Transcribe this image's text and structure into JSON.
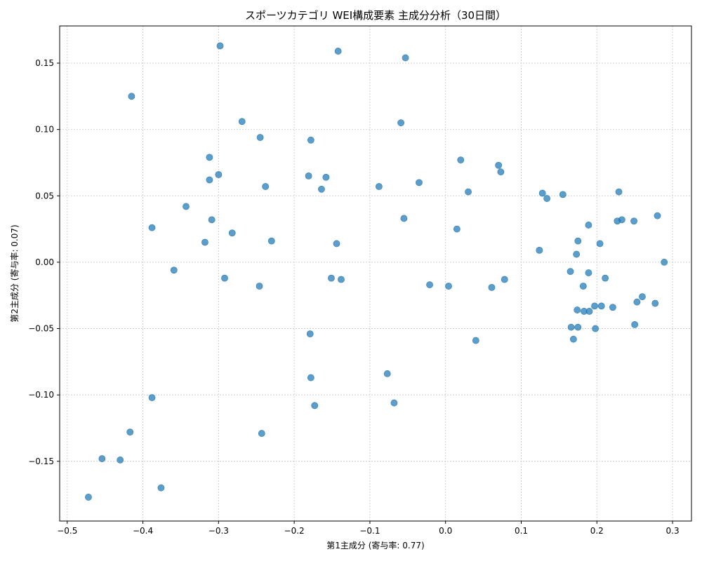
{
  "chart_data": {
    "type": "scatter",
    "title": "スポーツカテゴリ WEI構成要素 主成分分析（30日間）",
    "xlabel": "第1主成分 (寄与率: 0.77)",
    "ylabel": "第2主成分 (寄与率: 0.07)",
    "xlim": [
      -0.51,
      0.325
    ],
    "ylim": [
      -0.195,
      0.178
    ],
    "xticks": [
      -0.5,
      -0.4,
      -0.3,
      -0.2,
      -0.1,
      0.0,
      0.1,
      0.2,
      0.3
    ],
    "xtick_labels": [
      "−0.5",
      "−0.4",
      "−0.3",
      "−0.2",
      "−0.1",
      "0.0",
      "0.1",
      "0.2",
      "0.3"
    ],
    "yticks": [
      -0.15,
      -0.1,
      -0.05,
      0.0,
      0.05,
      0.1,
      0.15
    ],
    "ytick_labels": [
      "−0.15",
      "−0.10",
      "−0.05",
      "0.00",
      "0.05",
      "0.10",
      "0.15"
    ],
    "grid": true,
    "color": "#1f77b4",
    "points": [
      [
        -0.298,
        0.163
      ],
      [
        -0.142,
        0.159
      ],
      [
        -0.053,
        0.154
      ],
      [
        -0.415,
        0.125
      ],
      [
        -0.269,
        0.106
      ],
      [
        -0.059,
        0.105
      ],
      [
        -0.245,
        0.094
      ],
      [
        -0.178,
        0.092
      ],
      [
        -0.312,
        0.079
      ],
      [
        0.02,
        0.077
      ],
      [
        0.07,
        0.073
      ],
      [
        0.073,
        0.068
      ],
      [
        -0.3,
        0.066
      ],
      [
        -0.181,
        0.065
      ],
      [
        -0.158,
        0.064
      ],
      [
        -0.312,
        0.062
      ],
      [
        -0.035,
        0.06
      ],
      [
        -0.238,
        0.057
      ],
      [
        -0.088,
        0.057
      ],
      [
        -0.164,
        0.055
      ],
      [
        0.03,
        0.053
      ],
      [
        0.229,
        0.053
      ],
      [
        0.128,
        0.052
      ],
      [
        0.155,
        0.051
      ],
      [
        0.134,
        0.048
      ],
      [
        -0.343,
        0.042
      ],
      [
        0.28,
        0.035
      ],
      [
        -0.055,
        0.033
      ],
      [
        -0.309,
        0.032
      ],
      [
        0.233,
        0.032
      ],
      [
        0.249,
        0.031
      ],
      [
        0.227,
        0.031
      ],
      [
        0.189,
        0.028
      ],
      [
        -0.388,
        0.026
      ],
      [
        0.015,
        0.025
      ],
      [
        -0.282,
        0.022
      ],
      [
        0.175,
        0.016
      ],
      [
        -0.23,
        0.016
      ],
      [
        -0.318,
        0.015
      ],
      [
        0.204,
        0.014
      ],
      [
        -0.144,
        0.014
      ],
      [
        0.124,
        0.009
      ],
      [
        0.173,
        0.006
      ],
      [
        0.289,
        0.0
      ],
      [
        -0.359,
        -0.006
      ],
      [
        0.165,
        -0.007
      ],
      [
        0.189,
        -0.008
      ],
      [
        -0.151,
        -0.012
      ],
      [
        -0.292,
        -0.012
      ],
      [
        0.078,
        -0.013
      ],
      [
        0.211,
        -0.012
      ],
      [
        -0.138,
        -0.013
      ],
      [
        -0.021,
        -0.017
      ],
      [
        -0.246,
        -0.018
      ],
      [
        0.004,
        -0.018
      ],
      [
        0.182,
        -0.018
      ],
      [
        0.061,
        -0.019
      ],
      [
        0.26,
        -0.026
      ],
      [
        0.253,
        -0.03
      ],
      [
        0.277,
        -0.031
      ],
      [
        0.197,
        -0.033
      ],
      [
        0.206,
        -0.033
      ],
      [
        0.221,
        -0.034
      ],
      [
        0.174,
        -0.036
      ],
      [
        0.183,
        -0.037
      ],
      [
        0.19,
        -0.037
      ],
      [
        0.25,
        -0.047
      ],
      [
        0.166,
        -0.049
      ],
      [
        0.175,
        -0.049
      ],
      [
        0.198,
        -0.05
      ],
      [
        -0.179,
        -0.054
      ],
      [
        0.169,
        -0.058
      ],
      [
        0.04,
        -0.059
      ],
      [
        -0.077,
        -0.084
      ],
      [
        -0.178,
        -0.087
      ],
      [
        -0.388,
        -0.102
      ],
      [
        -0.068,
        -0.106
      ],
      [
        -0.173,
        -0.108
      ],
      [
        -0.417,
        -0.128
      ],
      [
        -0.243,
        -0.129
      ],
      [
        -0.454,
        -0.148
      ],
      [
        -0.43,
        -0.149
      ],
      [
        -0.376,
        -0.17
      ],
      [
        -0.472,
        -0.177
      ]
    ]
  }
}
